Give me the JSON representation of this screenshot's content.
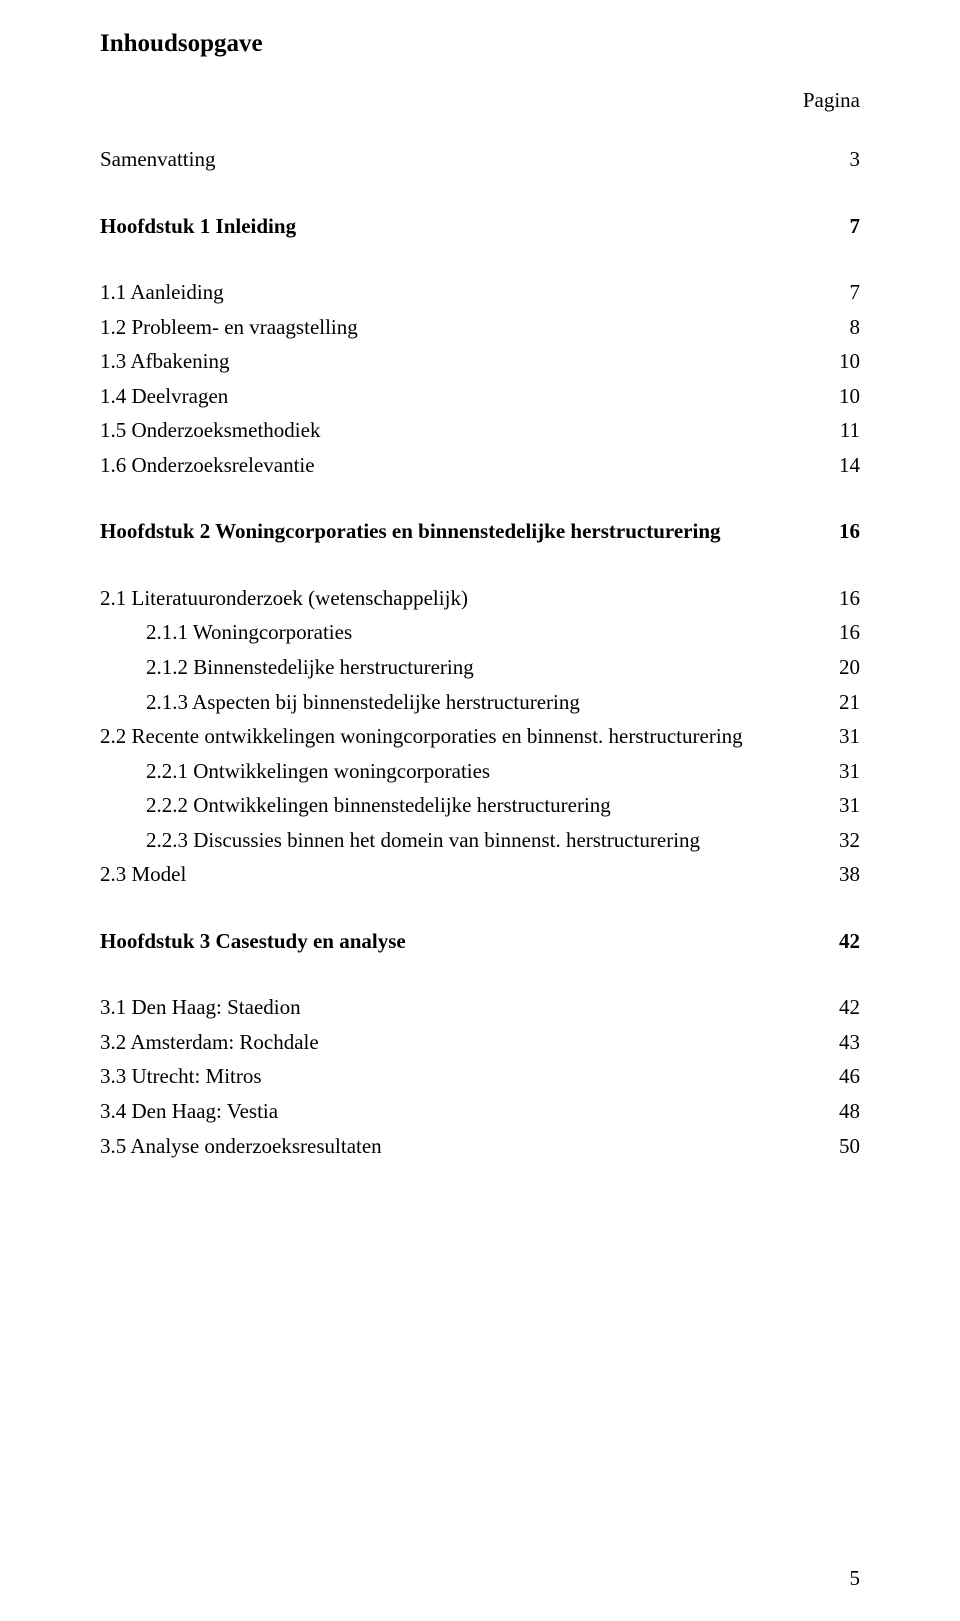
{
  "title": "Inhoudsopgave",
  "header_label": "Pagina",
  "page_number": "5",
  "entries": [
    {
      "label": "Samenvatting",
      "page": "3",
      "bold": false,
      "indent": 0,
      "gap_after": true
    },
    {
      "label": "Hoofdstuk 1 Inleiding",
      "page": "7",
      "bold": true,
      "indent": 0,
      "gap_after": true
    },
    {
      "label": "1.1 Aanleiding",
      "page": "7",
      "bold": false,
      "indent": 0
    },
    {
      "label": "1.2 Probleem- en vraagstelling",
      "page": "8",
      "bold": false,
      "indent": 0
    },
    {
      "label": "1.3 Afbakening",
      "page": "10",
      "bold": false,
      "indent": 0
    },
    {
      "label": "1.4 Deelvragen",
      "page": "10",
      "bold": false,
      "indent": 0
    },
    {
      "label": "1.5 Onderzoeksmethodiek",
      "page": "11",
      "bold": false,
      "indent": 0
    },
    {
      "label": "1.6 Onderzoeksrelevantie",
      "page": "14",
      "bold": false,
      "indent": 0,
      "gap_after": true
    },
    {
      "label": "Hoofdstuk 2 Woningcorporaties en binnenstedelijke herstructurering",
      "page": "16",
      "bold": true,
      "indent": 0,
      "gap_after": true
    },
    {
      "label": "2.1 Literatuuronderzoek (wetenschappelijk)",
      "page": "16",
      "bold": false,
      "indent": 0
    },
    {
      "label": "2.1.1 Woningcorporaties",
      "page": "16",
      "bold": false,
      "indent": 1
    },
    {
      "label": "2.1.2 Binnenstedelijke herstructurering",
      "page": "20",
      "bold": false,
      "indent": 1
    },
    {
      "label": "2.1.3 Aspecten bij binnenstedelijke herstructurering",
      "page": "21",
      "bold": false,
      "indent": 1
    },
    {
      "label": "2.2 Recente ontwikkelingen woningcorporaties en binnenst. herstructurering",
      "page": "31",
      "bold": false,
      "indent": 0
    },
    {
      "label": "2.2.1 Ontwikkelingen woningcorporaties",
      "page": "31",
      "bold": false,
      "indent": 1
    },
    {
      "label": "2.2.2 Ontwikkelingen binnenstedelijke herstructurering",
      "page": "31",
      "bold": false,
      "indent": 1
    },
    {
      "label": "2.2.3 Discussies binnen het domein van binnenst. herstructurering",
      "page": "32",
      "bold": false,
      "indent": 1
    },
    {
      "label": "2.3 Model",
      "page": "38",
      "bold": false,
      "indent": 0,
      "gap_after": true
    },
    {
      "label": "Hoofdstuk 3 Casestudy en analyse",
      "page": "42",
      "bold": true,
      "indent": 0,
      "gap_after": true
    },
    {
      "label": "3.1 Den Haag: Staedion",
      "page": "42",
      "bold": false,
      "indent": 0
    },
    {
      "label": "3.2 Amsterdam: Rochdale",
      "page": "43",
      "bold": false,
      "indent": 0
    },
    {
      "label": "3.3 Utrecht: Mitros",
      "page": "46",
      "bold": false,
      "indent": 0
    },
    {
      "label": "3.4 Den Haag: Vestia",
      "page": "48",
      "bold": false,
      "indent": 0
    },
    {
      "label": "3.5 Analyse onderzoeksresultaten",
      "page": "50",
      "bold": false,
      "indent": 0
    }
  ]
}
